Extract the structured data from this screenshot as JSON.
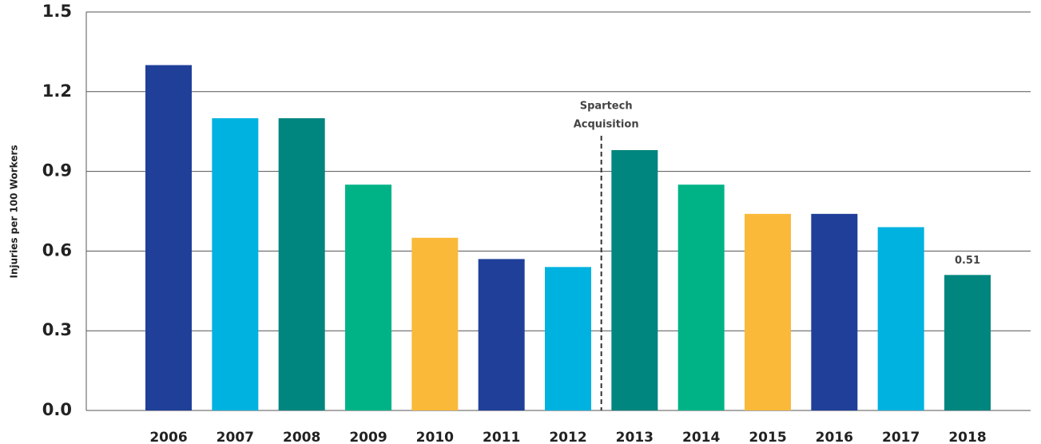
{
  "chart_data": {
    "type": "bar",
    "y_label": "Injuries per 100 Workers",
    "categories": [
      "2006",
      "2007",
      "2008",
      "2009",
      "2010",
      "2011",
      "2012",
      "2013",
      "2014",
      "2015",
      "2016",
      "2017",
      "2018"
    ],
    "values": [
      1.3,
      1.1,
      1.1,
      0.85,
      0.65,
      0.57,
      0.54,
      0.98,
      0.85,
      0.74,
      0.74,
      0.69,
      0.51
    ],
    "value_labels": [
      null,
      null,
      null,
      null,
      null,
      null,
      null,
      null,
      null,
      null,
      null,
      null,
      "0.51"
    ],
    "colors": [
      "#1f3f99",
      "#00b2e0",
      "#00857f",
      "#00b386",
      "#fbb93a",
      "#1f3f99",
      "#00b2e0",
      "#00857f",
      "#00b386",
      "#fbb93a",
      "#1f3f99",
      "#00b2e0",
      "#00857f"
    ],
    "annotation": [
      "Spartech",
      "Acquisition"
    ],
    "ylim": [
      0,
      1.5
    ],
    "yticks": [
      {
        "value": 0,
        "label": "0.0"
      },
      0.3,
      0.6,
      0.9,
      1.2,
      1.5
    ],
    "grid": true
  }
}
